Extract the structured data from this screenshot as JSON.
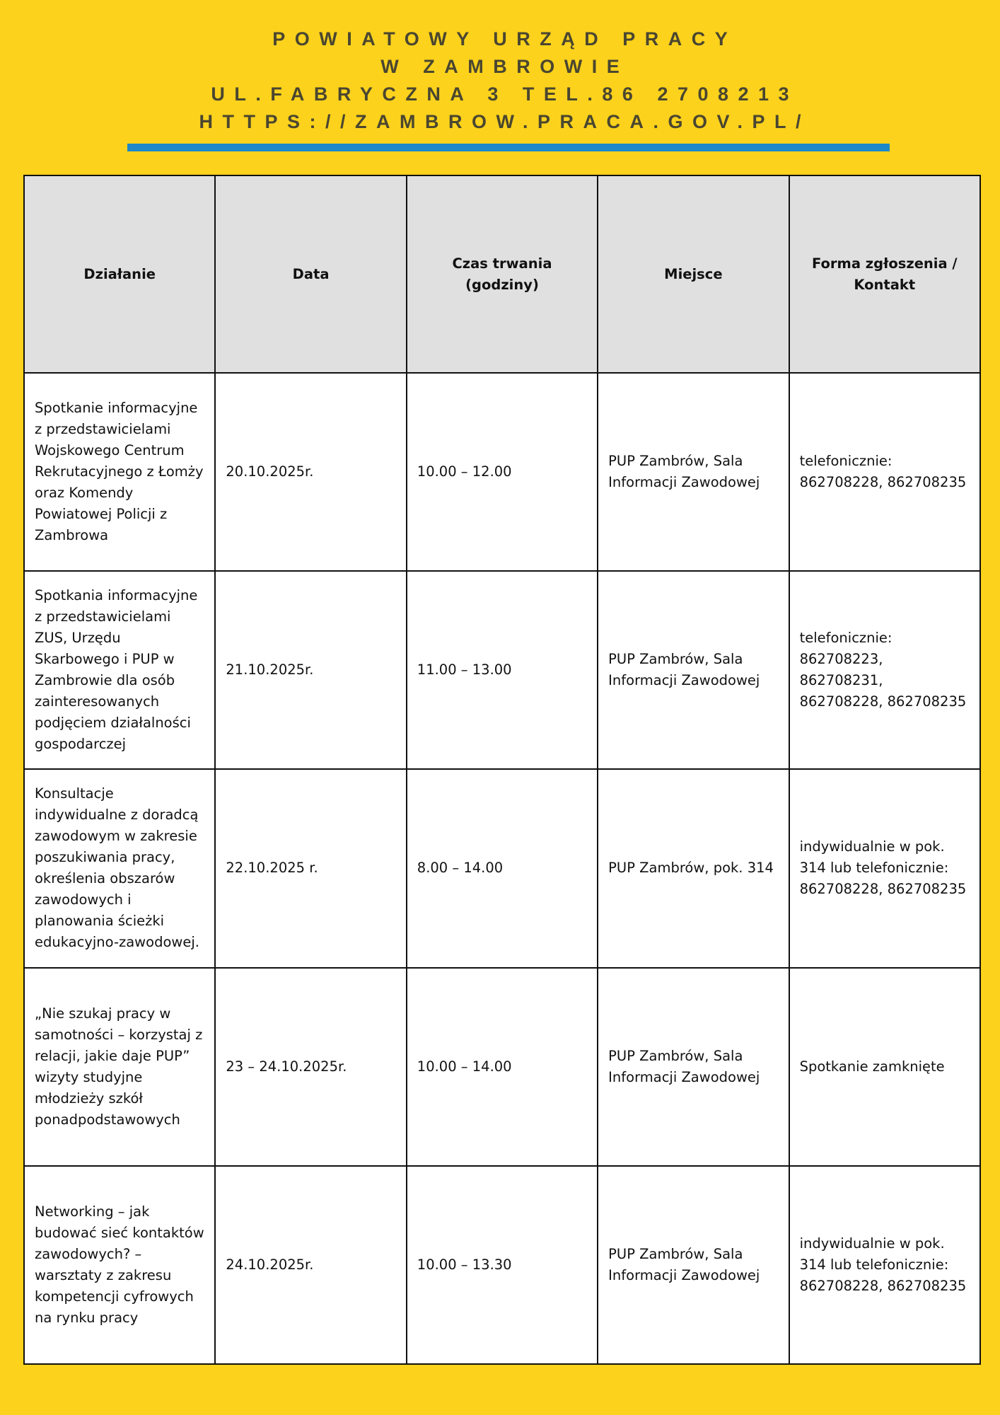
{
  "header": {
    "lines": [
      "POWIATOWY URZĄD PRACY",
      "W ZAMBROWIE",
      "UL.FABRYCZNA 3 TEL.86 2708213",
      "HTTPS://ZAMBROW.PRACA.GOV.PL/"
    ]
  },
  "colors": {
    "background": "#fcd21c",
    "accent_bar": "#1e88c8",
    "header_text": "#4a4630",
    "table_header_bg": "#e0e0e0"
  },
  "table": {
    "columns": [
      "Działanie",
      "Data",
      "Czas trwania (godziny)",
      "Miejsce",
      "Forma zgłoszenia / Kontakt"
    ],
    "rows": [
      [
        "Spotkanie informacyjne z przedstawicielami Wojskowego Centrum Rekrutacyjnego z Łomży oraz Komendy Powiatowej Policji z Zambrowa",
        "20.10.2025r.",
        "10.00 – 12.00",
        "PUP Zambrów, Sala Informacji Zawodowej",
        "telefonicznie: 862708228, 862708235"
      ],
      [
        "Spotkania informacyjne z przedstawicielami ZUS, Urzędu Skarbowego i PUP w Zambrowie dla osób zainteresowanych podjęciem działalności gospodarczej",
        "21.10.2025r.",
        "11.00 – 13.00",
        "PUP Zambrów, Sala Informacji Zawodowej",
        "telefonicznie: 862708223, 862708231, 862708228, 862708235"
      ],
      [
        "Konsultacje indywidualne z doradcą zawodowym w zakresie poszukiwania pracy, określenia obszarów zawodowych i planowania ścieżki edukacyjno-zawodowej.",
        "22.10.2025 r.",
        "8.00 – 14.00",
        "PUP Zambrów, pok. 314",
        "indywidualnie w pok. 314 lub telefonicznie: 862708228, 862708235"
      ],
      [
        "„Nie szukaj pracy w samotności – korzystaj z relacji, jakie daje PUP” wizyty studyjne młodzieży szkół ponadpodstawowych",
        "23 – 24.10.2025r.",
        "10.00 – 14.00",
        "PUP Zambrów, Sala Informacji Zawodowej",
        "Spotkanie zamknięte"
      ],
      [
        "Networking – jak budować sieć kontaktów zawodowych? – warsztaty z zakresu kompetencji cyfrowych na rynku pracy",
        "24.10.2025r.",
        "10.00 – 13.30",
        "PUP Zambrów, Sala Informacji Zawodowej",
        "indywidualnie w pok. 314 lub telefonicznie: 862708228, 862708235"
      ]
    ]
  }
}
